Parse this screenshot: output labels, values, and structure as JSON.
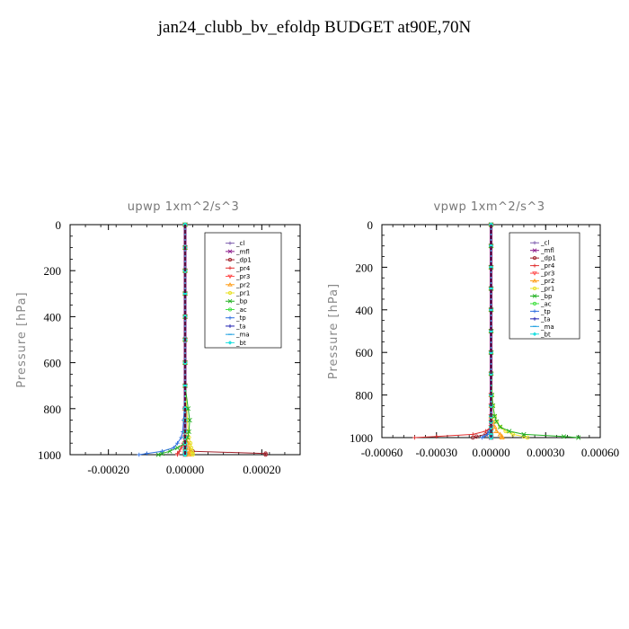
{
  "figure": {
    "title": "jan24_clubb_bv_efoldp  BUDGET at90E,70N"
  },
  "chart_data": [
    {
      "type": "line",
      "title": "upwp   1xm^2/s^3",
      "ylabel": "Pressure [hPa]",
      "xlabel": "",
      "xlim": [
        -0.0003,
        0.0003
      ],
      "ylim": [
        1000,
        0
      ],
      "x_ticks": [
        -0.0002,
        0.0,
        0.0002
      ],
      "x_tick_labels": [
        "-0.00020",
        "0.00000",
        "0.00020"
      ],
      "y_ticks": [
        0,
        200,
        400,
        600,
        800,
        1000
      ],
      "y_tick_labels": [
        "0",
        "200",
        "400",
        "600",
        "800",
        "1000"
      ],
      "legend_position": "top-right",
      "levels": [
        0,
        100,
        200,
        300,
        400,
        500,
        600,
        700,
        800,
        850,
        900,
        925,
        950,
        970,
        985,
        995,
        1000
      ],
      "series": [
        {
          "name": "_cl",
          "color": "#7F5FAF",
          "marker": "+",
          "values": [
            0,
            0,
            0,
            0,
            0,
            0,
            0,
            0,
            0,
            0,
            0,
            0,
            0,
            0,
            0,
            0,
            0
          ]
        },
        {
          "name": "_mfl",
          "color": "#8B1A8B",
          "marker": "x",
          "values": [
            0,
            0,
            0,
            0,
            0,
            0,
            0,
            0,
            0,
            0,
            0,
            0,
            0,
            0,
            0,
            0,
            0
          ]
        },
        {
          "name": "_dp1",
          "color": "#A0202A",
          "marker": "o",
          "values": [
            0,
            0,
            0,
            0,
            0,
            0,
            0,
            0,
            0,
            0,
            0,
            0,
            0,
            0,
            2e-05,
            0.00021,
            0.00021
          ]
        },
        {
          "name": "_pr4",
          "color": "#E03030",
          "marker": "+",
          "values": [
            0,
            0,
            0,
            0,
            0,
            0,
            0,
            0,
            0,
            0,
            0,
            0,
            -5e-06,
            -1e-05,
            -1.5e-05,
            -2e-05,
            -2e-05
          ]
        },
        {
          "name": "_pr3",
          "color": "#FF5050",
          "marker": "v",
          "values": [
            0,
            0,
            0,
            0,
            0,
            0,
            0,
            0,
            0,
            0,
            0,
            0,
            0,
            0,
            0,
            0,
            0
          ]
        },
        {
          "name": "_pr2",
          "color": "#FFA020",
          "marker": "^",
          "values": [
            0,
            0,
            0,
            0,
            0,
            0,
            0,
            0,
            0,
            0,
            0,
            4e-06,
            8e-06,
            1e-05,
            1.2e-05,
            1e-05,
            1e-05
          ]
        },
        {
          "name": "_pr1",
          "color": "#E8E020",
          "marker": "o",
          "values": [
            0,
            0,
            0,
            0,
            0,
            0,
            0,
            0,
            4e-06,
            6e-06,
            8e-06,
            1e-05,
            1.4e-05,
            1.6e-05,
            1.8e-05,
            2e-05,
            2e-05
          ]
        },
        {
          "name": "_bp",
          "color": "#20B020",
          "marker": "x",
          "values": [
            0,
            0,
            0,
            0,
            0,
            0,
            0,
            0,
            8e-06,
            1.2e-05,
            1e-05,
            6e-06,
            0,
            -2e-05,
            -4e-05,
            -6e-05,
            -7e-05
          ]
        },
        {
          "name": "_ac",
          "color": "#40E040",
          "marker": "o",
          "values": [
            0,
            0,
            0,
            0,
            0,
            0,
            0,
            0,
            0,
            0,
            0,
            0,
            0,
            0,
            0,
            0,
            0
          ]
        },
        {
          "name": "_tp",
          "color": "#3070E0",
          "marker": "+",
          "values": [
            0,
            0,
            0,
            0,
            0,
            0,
            0,
            0,
            -2e-06,
            -4e-06,
            -6e-06,
            -1e-05,
            -2e-05,
            -3e-05,
            -6e-05,
            -0.0001,
            -0.00012
          ]
        },
        {
          "name": "_ta",
          "color": "#2020B0",
          "marker": "+",
          "values": [
            0,
            0,
            0,
            0,
            0,
            0,
            0,
            0,
            0,
            0,
            0,
            0,
            0,
            0,
            0,
            0,
            0
          ]
        },
        {
          "name": "_ma",
          "color": "#20A0E0",
          "marker": "-",
          "values": [
            0,
            0,
            0,
            0,
            0,
            0,
            0,
            0,
            0,
            0,
            0,
            0,
            0,
            0,
            0,
            0,
            0
          ]
        },
        {
          "name": "_bt",
          "color": "#20E0E0",
          "marker": "D",
          "values": [
            0,
            0,
            0,
            0,
            0,
            0,
            0,
            0,
            0,
            0,
            0,
            0,
            0,
            0,
            0,
            0,
            0
          ]
        }
      ]
    },
    {
      "type": "line",
      "title": "vpwp   1xm^2/s^3",
      "ylabel": "Pressure [hPa]",
      "xlabel": "",
      "xlim": [
        -0.0006,
        0.0006
      ],
      "ylim": [
        1000,
        0
      ],
      "x_ticks": [
        -0.0006,
        -0.0003,
        0.0,
        0.0003,
        0.0006
      ],
      "x_tick_labels": [
        "-0.00060",
        "-0.00030",
        "0.00000",
        "0.00030",
        "0.00060"
      ],
      "y_ticks": [
        0,
        200,
        400,
        600,
        800,
        1000
      ],
      "y_tick_labels": [
        "0",
        "200",
        "400",
        "600",
        "800",
        "1000"
      ],
      "legend_position": "top-right",
      "levels": [
        0,
        100,
        200,
        300,
        400,
        500,
        600,
        700,
        800,
        850,
        900,
        925,
        950,
        970,
        985,
        995,
        1000
      ],
      "series": [
        {
          "name": "_cl",
          "color": "#7F5FAF",
          "marker": "+",
          "values": [
            0,
            0,
            0,
            0,
            0,
            0,
            0,
            0,
            0,
            0,
            0,
            0,
            0,
            0,
            0,
            0,
            0
          ]
        },
        {
          "name": "_mfl",
          "color": "#8B1A8B",
          "marker": "x",
          "values": [
            0,
            0,
            0,
            0,
            0,
            0,
            0,
            0,
            0,
            0,
            0,
            0,
            0,
            0,
            0,
            0,
            0
          ]
        },
        {
          "name": "_dp1",
          "color": "#A0202A",
          "marker": "o",
          "values": [
            0,
            0,
            0,
            0,
            0,
            0,
            0,
            0,
            0,
            0,
            0,
            0,
            0,
            -1e-05,
            -3e-05,
            -8e-05,
            -0.0001
          ]
        },
        {
          "name": "_pr4",
          "color": "#E03030",
          "marker": "+",
          "values": [
            0,
            0,
            0,
            0,
            0,
            0,
            0,
            0,
            0,
            0,
            0,
            0,
            0,
            -3e-05,
            -0.0001,
            -0.0003,
            -0.00042
          ]
        },
        {
          "name": "_pr3",
          "color": "#FF5050",
          "marker": "v",
          "values": [
            0,
            0,
            0,
            0,
            0,
            0,
            0,
            0,
            0,
            0,
            0,
            0,
            0,
            0,
            0,
            0,
            0
          ]
        },
        {
          "name": "_pr2",
          "color": "#FFA020",
          "marker": "^",
          "values": [
            0,
            0,
            0,
            0,
            0,
            0,
            0,
            0,
            0,
            0,
            0,
            1e-05,
            2e-05,
            3e-05,
            5e-05,
            6e-05,
            6e-05
          ]
        },
        {
          "name": "_pr1",
          "color": "#E8E020",
          "marker": "o",
          "values": [
            0,
            0,
            0,
            0,
            0,
            0,
            0,
            0,
            5e-06,
            1e-05,
            2e-05,
            3e-05,
            5e-05,
            8e-05,
            0.00012,
            0.00018,
            0.0002
          ]
        },
        {
          "name": "_bp",
          "color": "#20B020",
          "marker": "x",
          "values": [
            0,
            0,
            0,
            0,
            0,
            0,
            0,
            0,
            5e-06,
            1e-05,
            2e-05,
            3e-05,
            5e-05,
            0.0001,
            0.00018,
            0.0004,
            0.00048
          ]
        },
        {
          "name": "_ac",
          "color": "#40E040",
          "marker": "o",
          "values": [
            0,
            0,
            0,
            0,
            0,
            0,
            0,
            0,
            0,
            0,
            0,
            0,
            0,
            0,
            0,
            0,
            0
          ]
        },
        {
          "name": "_tp",
          "color": "#3070E0",
          "marker": "+",
          "values": [
            0,
            0,
            0,
            0,
            0,
            0,
            0,
            0,
            0,
            0,
            0,
            0,
            0,
            -1e-05,
            -2e-05,
            -4e-05,
            -5e-05
          ]
        },
        {
          "name": "_ta",
          "color": "#2020B0",
          "marker": "+",
          "values": [
            0,
            0,
            0,
            0,
            0,
            0,
            0,
            0,
            0,
            0,
            0,
            0,
            0,
            0,
            0,
            0,
            0
          ]
        },
        {
          "name": "_ma",
          "color": "#20A0E0",
          "marker": "-",
          "values": [
            0,
            0,
            0,
            0,
            0,
            0,
            0,
            0,
            0,
            0,
            0,
            0,
            0,
            0,
            0,
            0,
            0
          ]
        },
        {
          "name": "_bt",
          "color": "#20E0E0",
          "marker": "D",
          "values": [
            0,
            0,
            0,
            0,
            0,
            0,
            0,
            0,
            0,
            0,
            0,
            0,
            0,
            0,
            0,
            0,
            0
          ]
        }
      ]
    }
  ]
}
